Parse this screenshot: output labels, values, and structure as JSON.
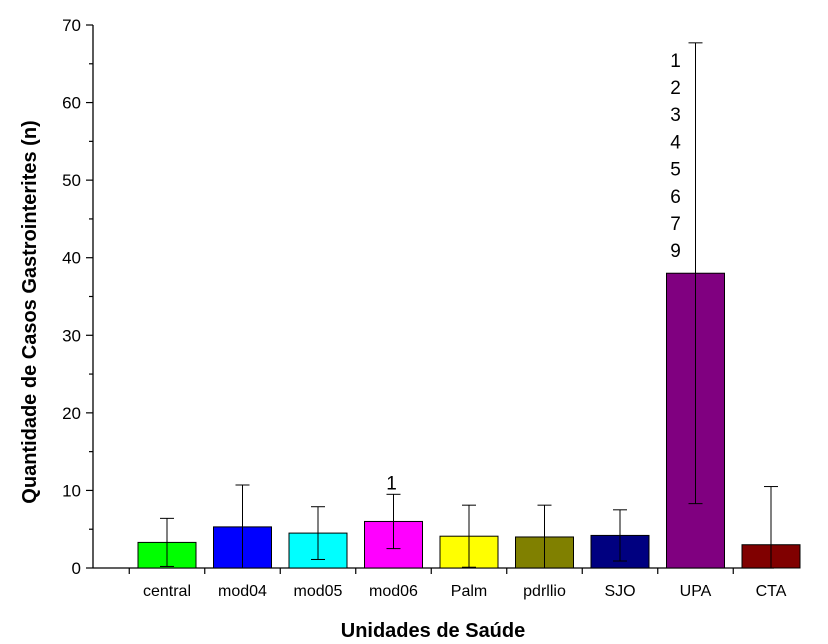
{
  "chart_data": {
    "type": "bar",
    "title": "",
    "xlabel": "Unidades de Saúde",
    "ylabel": "Quantidade de Casos Gastrointerites (n)",
    "ylim": [
      0,
      70
    ],
    "yticks": [
      0,
      10,
      20,
      30,
      40,
      50,
      60,
      70
    ],
    "grid": false,
    "categories": [
      "central",
      "mod04",
      "mod05",
      "mod06",
      "Palm",
      "pdrllio",
      "SJO",
      "UPA",
      "CTA"
    ],
    "values": [
      3.3,
      5.3,
      4.5,
      6.0,
      4.1,
      4.0,
      4.2,
      38.0,
      3.0
    ],
    "error": [
      3.1,
      5.4,
      3.4,
      3.5,
      4.0,
      4.1,
      3.3,
      29.7,
      7.5
    ],
    "colors": [
      "#00ff00",
      "#0000ff",
      "#00ffff",
      "#ff00ff",
      "#ffff00",
      "#808000",
      "#000080",
      "#800080",
      "#800000"
    ],
    "annotations": [
      {
        "category": "mod06",
        "lines": [
          "1"
        ]
      },
      {
        "category": "UPA",
        "lines": [
          "1",
          "2",
          "3",
          "4",
          "5",
          "6",
          "7",
          "9"
        ]
      }
    ]
  }
}
